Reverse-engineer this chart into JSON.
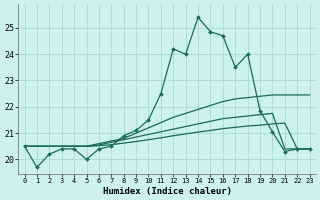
{
  "bg_color": "#cdf0f0",
  "grid_color": "#aad8d8",
  "line_color": "#1a6b5a",
  "xlabel": "Humidex (Indice chaleur)",
  "xlim": [
    -0.5,
    23.5
  ],
  "ylim": [
    19.45,
    25.9
  ],
  "yticks": [
    20,
    21,
    22,
    23,
    24,
    25
  ],
  "xticks": [
    0,
    1,
    2,
    3,
    4,
    5,
    6,
    7,
    8,
    9,
    10,
    11,
    12,
    13,
    14,
    15,
    16,
    17,
    18,
    19,
    20,
    21,
    22,
    23
  ],
  "main_x": [
    0,
    1,
    2,
    3,
    4,
    5,
    6,
    7,
    8,
    9,
    10,
    11,
    12,
    13,
    14,
    15,
    16,
    17,
    18,
    19,
    20,
    21,
    22,
    23
  ],
  "main_y": [
    20.5,
    19.7,
    20.2,
    20.4,
    20.4,
    20.0,
    20.4,
    20.5,
    20.9,
    21.1,
    21.5,
    22.5,
    24.2,
    24.0,
    25.4,
    24.85,
    24.7,
    23.5,
    24.0,
    21.85,
    21.05,
    20.3,
    20.4,
    20.4
  ],
  "trend1_x": [
    0,
    4,
    5,
    6,
    7,
    8,
    9,
    10,
    11,
    12,
    13,
    14,
    15,
    16,
    17,
    18,
    19,
    20,
    21,
    22,
    23
  ],
  "trend1_y": [
    20.5,
    20.5,
    20.5,
    20.6,
    20.7,
    20.8,
    21.0,
    21.2,
    21.4,
    21.6,
    21.75,
    21.9,
    22.05,
    22.2,
    22.3,
    22.35,
    22.4,
    22.45,
    22.45,
    22.45,
    22.45
  ],
  "trend2_x": [
    0,
    4,
    5,
    6,
    7,
    8,
    9,
    10,
    11,
    12,
    13,
    14,
    15,
    16,
    17,
    18,
    19,
    20,
    21,
    22,
    23
  ],
  "trend2_y": [
    20.5,
    20.5,
    20.5,
    20.55,
    20.65,
    20.75,
    20.85,
    20.95,
    21.05,
    21.15,
    21.25,
    21.35,
    21.45,
    21.55,
    21.6,
    21.65,
    21.7,
    21.75,
    20.4,
    20.4,
    20.4
  ],
  "trend3_x": [
    0,
    4,
    5,
    6,
    7,
    8,
    9,
    10,
    11,
    12,
    13,
    14,
    15,
    16,
    17,
    18,
    19,
    20,
    21,
    22,
    23
  ],
  "trend3_y": [
    20.5,
    20.5,
    20.5,
    20.52,
    20.56,
    20.62,
    20.68,
    20.75,
    20.82,
    20.9,
    20.97,
    21.04,
    21.1,
    21.17,
    21.22,
    21.27,
    21.3,
    21.35,
    21.38,
    20.4,
    20.4
  ]
}
